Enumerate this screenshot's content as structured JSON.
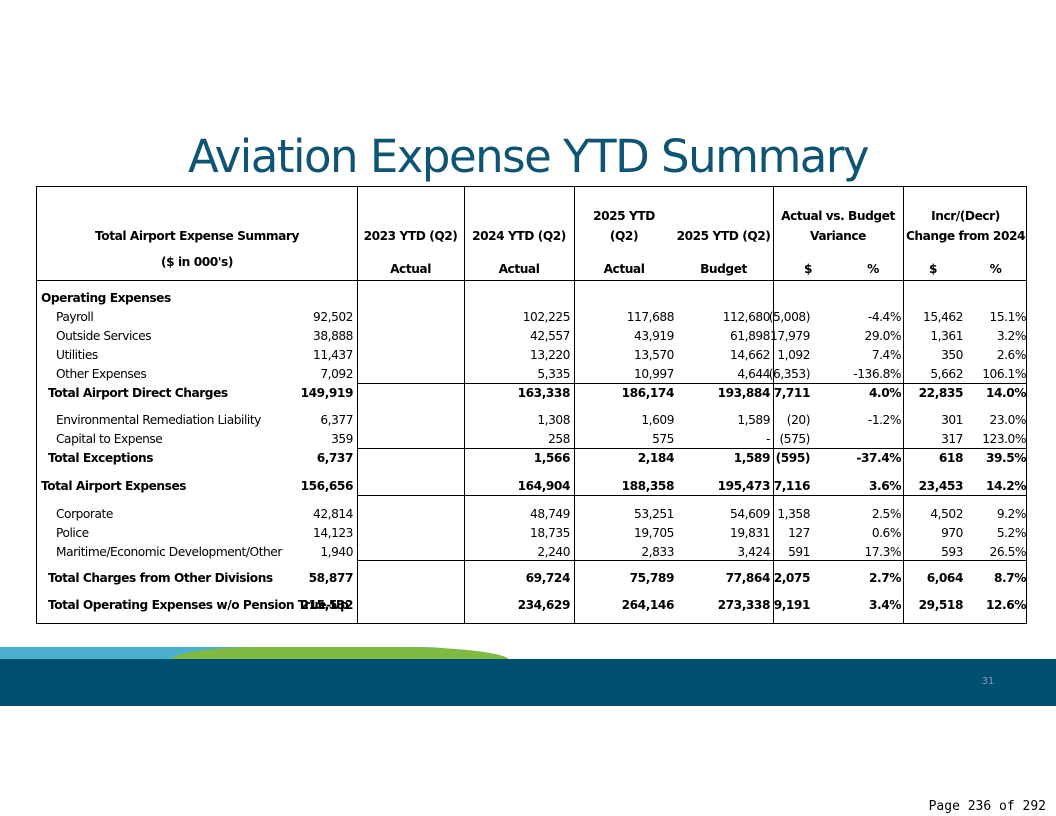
{
  "slide": {
    "title": "Aviation Expense YTD Summary",
    "slide_number": "31",
    "page_label": "Page 236 of 292",
    "colors": {
      "title": "#0e5474",
      "band_dark": "#00506f",
      "band_light_blue": "#4bb0cd",
      "band_green": "#7fba42"
    }
  },
  "table": {
    "header": {
      "label_line1": "Total Airport Expense Summary",
      "label_line2": "($ in 000's)",
      "col_2023": {
        "line1": "2023 YTD (Q2)",
        "line2": "Actual"
      },
      "col_2024": {
        "line1": "2024 YTD (Q2)",
        "line2": "Actual"
      },
      "col_2025a": {
        "line1": "2025 YTD",
        "line1b": "(Q2)",
        "line2": "Actual"
      },
      "col_2025b": {
        "line1": "2025 YTD (Q2)",
        "line2": "Budget"
      },
      "variance": {
        "line1": "Actual vs. Budget",
        "line1b": "Variance",
        "dollar": "$",
        "pct": "%"
      },
      "change": {
        "line1": "Incr/(Decr)",
        "line1b": "Change from 2024",
        "dollar": "$",
        "pct": "%"
      }
    },
    "rows": [
      {
        "label": "Operating Expenses",
        "style": "section",
        "values": [
          "",
          "",
          "",
          "",
          "",
          "",
          "",
          ""
        ]
      },
      {
        "label": "Payroll",
        "style": "item",
        "values": [
          "92,502",
          "102,225",
          "117,688",
          "112,680",
          "(5,008)",
          "-4.4%",
          "15,462",
          "15.1%"
        ]
      },
      {
        "label": "Outside Services",
        "style": "item",
        "values": [
          "38,888",
          "42,557",
          "43,919",
          "61,898",
          "17,979",
          "29.0%",
          "1,361",
          "3.2%"
        ]
      },
      {
        "label": "Utilities",
        "style": "item",
        "values": [
          "11,437",
          "13,220",
          "13,570",
          "14,662",
          "1,092",
          "7.4%",
          "350",
          "2.6%"
        ]
      },
      {
        "label": "Other Expenses",
        "style": "item",
        "values": [
          "7,092",
          "5,335",
          "10,997",
          "4,644",
          "(6,353)",
          "-136.8%",
          "5,662",
          "106.1%"
        ]
      },
      {
        "label": "Total Airport Direct Charges",
        "style": "subtotal",
        "values": [
          "149,919",
          "163,338",
          "186,174",
          "193,884",
          "7,711",
          "4.0%",
          "22,835",
          "14.0%"
        ]
      },
      {
        "label": "Environmental Remediation Liability",
        "style": "item",
        "values": [
          "6,377",
          "1,308",
          "1,609",
          "1,589",
          "(20)",
          "-1.2%",
          "301",
          "23.0%"
        ]
      },
      {
        "label": "Capital to Expense",
        "style": "item",
        "values": [
          "359",
          "258",
          "575",
          "-",
          "(575)",
          "",
          "317",
          "123.0%"
        ]
      },
      {
        "label": "Total Exceptions",
        "style": "subtotal",
        "values": [
          "6,737",
          "1,566",
          "2,184",
          "1,589",
          "(595)",
          "-37.4%",
          "618",
          "39.5%"
        ]
      },
      {
        "label": "Total Airport Expenses",
        "style": "total",
        "values": [
          "156,656",
          "164,904",
          "188,358",
          "195,473",
          "7,116",
          "3.6%",
          "23,453",
          "14.2%"
        ]
      },
      {
        "label": "Corporate",
        "style": "item",
        "values": [
          "42,814",
          "48,749",
          "53,251",
          "54,609",
          "1,358",
          "2.5%",
          "4,502",
          "9.2%"
        ]
      },
      {
        "label": "Police",
        "style": "item",
        "values": [
          "14,123",
          "18,735",
          "19,705",
          "19,831",
          "127",
          "0.6%",
          "970",
          "5.2%"
        ]
      },
      {
        "label": "Maritime/Economic Development/Other",
        "style": "item",
        "values": [
          "1,940",
          "2,240",
          "2,833",
          "3,424",
          "591",
          "17.3%",
          "593",
          "26.5%"
        ]
      },
      {
        "label": "Total Charges from Other Divisions",
        "style": "subtotal",
        "values": [
          "58,877",
          "69,724",
          "75,789",
          "77,864",
          "2,075",
          "2.7%",
          "6,064",
          "8.7%"
        ]
      },
      {
        "label": "Total Operating Expenses w/o Pension True-Up",
        "style": "subtotal",
        "values": [
          "215,532",
          "234,629",
          "264,146",
          "273,338",
          "9,191",
          "3.4%",
          "29,518",
          "12.6%"
        ]
      }
    ]
  }
}
